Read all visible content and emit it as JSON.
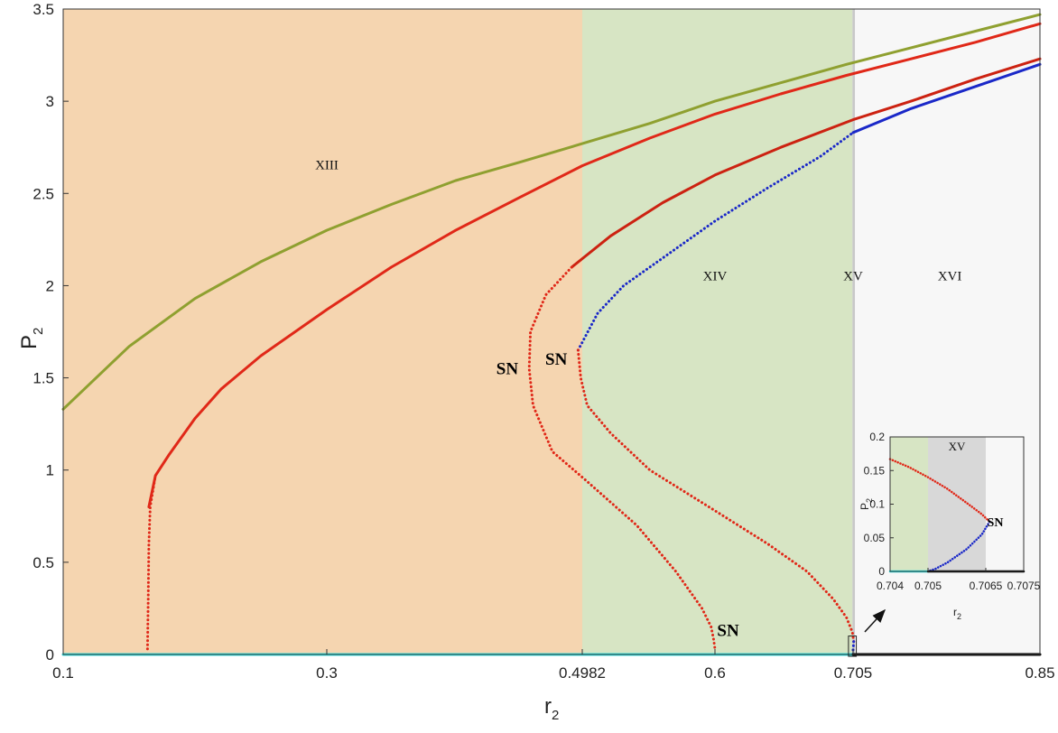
{
  "chart_data": [
    {
      "type": "line",
      "xlabel": "r",
      "xlabel_sub": "2",
      "ylabel": "P",
      "ylabel_sub": "2",
      "xlim": [
        0.1,
        0.85
      ],
      "ylim": [
        0,
        3.5
      ],
      "x_ticks": [
        0.1,
        0.3,
        0.4982,
        0.6,
        0.705,
        0.85
      ],
      "x_tick_labels": [
        "0.1",
        "0.3",
        "0.4982",
        "0.6",
        "0.705",
        "0.85"
      ],
      "y_ticks": [
        0,
        0.5,
        1,
        1.5,
        2,
        2.5,
        3,
        3.5
      ],
      "y_tick_labels": [
        "0",
        "0.5",
        "1",
        "1.5",
        "2",
        "2.5",
        "3",
        "3.5"
      ],
      "regions": [
        {
          "label": "XIII",
          "x_range": [
            0.1,
            0.4982
          ],
          "color": "#f5d5b0",
          "label_at": [
            0.3,
            2.63
          ]
        },
        {
          "label": "XIV",
          "x_range": [
            0.4982,
            0.7045
          ],
          "color": "#d7e5c4",
          "label_at": [
            0.6,
            2.03
          ]
        },
        {
          "label": "XV",
          "x_range": [
            0.7045,
            0.7065
          ],
          "color": "#c8c8c8",
          "label_at": [
            0.705,
            2.03
          ]
        },
        {
          "label": "XVI",
          "x_range": [
            0.7065,
            0.85
          ],
          "color": "#f7f7f7",
          "label_at": [
            0.78,
            2.03
          ]
        }
      ],
      "series": [
        {
          "style": "solid",
          "color": "#8fa030",
          "x": [
            0.1,
            0.15,
            0.2,
            0.25,
            0.3,
            0.35,
            0.4,
            0.45,
            0.4982,
            0.55,
            0.6,
            0.65,
            0.7,
            0.75,
            0.8,
            0.85
          ],
          "y": [
            1.33,
            1.67,
            1.93,
            2.13,
            2.3,
            2.44,
            2.57,
            2.67,
            2.77,
            2.88,
            3.0,
            3.1,
            3.2,
            3.29,
            3.38,
            3.47
          ]
        },
        {
          "style": "solid",
          "color": "#e02818",
          "x": [
            0.165,
            0.17,
            0.18,
            0.2,
            0.22,
            0.25,
            0.3,
            0.35,
            0.4,
            0.45,
            0.4982,
            0.55,
            0.6,
            0.65,
            0.7,
            0.75,
            0.8,
            0.85
          ],
          "y": [
            0.8,
            0.97,
            1.08,
            1.28,
            1.44,
            1.62,
            1.87,
            2.1,
            2.3,
            2.48,
            2.65,
            2.8,
            2.93,
            3.04,
            3.14,
            3.23,
            3.32,
            3.42
          ]
        },
        {
          "style": "dotted",
          "color": "#e02818",
          "x": [
            0.164,
            0.1645,
            0.165,
            0.166,
            0.17
          ],
          "y": [
            0.03,
            0.3,
            0.6,
            0.8,
            0.97
          ]
        },
        {
          "style": "solid",
          "color": "#cc2211",
          "x": [
            0.49,
            0.52,
            0.56,
            0.6,
            0.65,
            0.705,
            0.75,
            0.8,
            0.85
          ],
          "y": [
            2.1,
            2.27,
            2.45,
            2.6,
            2.75,
            2.9,
            3.0,
            3.12,
            3.23
          ]
        },
        {
          "style": "dotted",
          "color": "#e02818",
          "x": [
            0.49,
            0.47,
            0.458,
            0.457,
            0.46,
            0.475,
            0.5,
            0.54,
            0.57,
            0.59,
            0.597,
            0.599,
            0.6
          ],
          "y": [
            2.1,
            1.95,
            1.75,
            1.55,
            1.35,
            1.1,
            0.95,
            0.7,
            0.45,
            0.25,
            0.15,
            0.08,
            0.03
          ]
        },
        {
          "style": "solid",
          "color": "#1a28c8",
          "x": [
            0.705,
            0.75,
            0.8,
            0.85
          ],
          "y": [
            2.83,
            2.96,
            3.08,
            3.2
          ]
        },
        {
          "style": "dotted",
          "color": "#1a28c8",
          "x": [
            0.495,
            0.51,
            0.53,
            0.56,
            0.6,
            0.64,
            0.68,
            0.705
          ],
          "y": [
            1.65,
            1.85,
            2.0,
            2.15,
            2.35,
            2.53,
            2.7,
            2.83
          ]
        },
        {
          "style": "dotted",
          "color": "#e02818",
          "x": [
            0.495,
            0.497,
            0.502,
            0.52,
            0.55,
            0.6,
            0.64,
            0.67,
            0.69,
            0.7,
            0.7045,
            0.7055
          ],
          "y": [
            1.65,
            1.5,
            1.35,
            1.2,
            1.0,
            0.78,
            0.6,
            0.45,
            0.3,
            0.2,
            0.12,
            0.07
          ]
        },
        {
          "style": "dotted",
          "color": "#1a28c8",
          "x": [
            0.7055,
            0.7052,
            0.7049,
            0.7047
          ],
          "y": [
            0.07,
            0.04,
            0.02,
            0.0
          ]
        },
        {
          "style": "solid",
          "color": "#33e0e0",
          "x": [
            0.1,
            0.705
          ],
          "y": [
            0,
            0
          ]
        },
        {
          "style": "solid",
          "color": "#000000",
          "x": [
            0.705,
            0.85
          ],
          "y": [
            0,
            0
          ]
        }
      ],
      "annotations": [
        {
          "text": "SN",
          "x": 0.44,
          "y": 1.55
        },
        {
          "text": "SN",
          "x": 0.478,
          "y": 1.6
        },
        {
          "text": "SN",
          "x": 0.61,
          "y": 0.13
        }
      ],
      "zoom_box": {
        "x_range": [
          0.7015,
          0.7075
        ],
        "y_range": [
          -0.01,
          0.1
        ]
      }
    },
    {
      "type": "line",
      "xlabel": "r",
      "xlabel_sub": "2",
      "ylabel": "P",
      "ylabel_sub": "2",
      "xlim": [
        0.704,
        0.7075
      ],
      "ylim": [
        0,
        0.2
      ],
      "x_ticks": [
        0.704,
        0.705,
        0.7065,
        0.7075
      ],
      "x_tick_labels": [
        "0.704",
        "0.705",
        "0.7065",
        "0.7075"
      ],
      "y_ticks": [
        0,
        0.05,
        0.1,
        0.15,
        0.2
      ],
      "y_tick_labels": [
        "0",
        "0.05",
        "0.1",
        "0.15",
        "0.2"
      ],
      "regions": [
        {
          "label": "",
          "x_range": [
            0.704,
            0.705
          ],
          "color": "#d7e5c4",
          "label_at": [
            0.7045,
            0.18
          ]
        },
        {
          "label": "XV",
          "x_range": [
            0.705,
            0.7065
          ],
          "color": "#d8d8d8",
          "label_at": [
            0.70575,
            0.18
          ]
        },
        {
          "label": "",
          "x_range": [
            0.7065,
            0.7075
          ],
          "color": "#f7f7f7",
          "label_at": [
            0.707,
            0.18
          ]
        }
      ],
      "series": [
        {
          "style": "dotted",
          "color": "#e02818",
          "x": [
            0.704,
            0.7045,
            0.705,
            0.7055,
            0.706,
            0.7064,
            0.7066
          ],
          "y": [
            0.167,
            0.155,
            0.14,
            0.123,
            0.102,
            0.085,
            0.074
          ]
        },
        {
          "style": "dotted",
          "color": "#1a28c8",
          "x": [
            0.7066,
            0.7064,
            0.706,
            0.7055,
            0.7052,
            0.705
          ],
          "y": [
            0.074,
            0.055,
            0.033,
            0.013,
            0.004,
            0.0
          ]
        },
        {
          "style": "solid",
          "color": "#33e0e0",
          "x": [
            0.704,
            0.705
          ],
          "y": [
            0,
            0
          ]
        },
        {
          "style": "solid",
          "color": "#000000",
          "x": [
            0.705,
            0.7075
          ],
          "y": [
            0,
            0
          ]
        }
      ],
      "annotations": [
        {
          "text": "SN",
          "x": 0.70675,
          "y": 0.074
        }
      ]
    }
  ]
}
